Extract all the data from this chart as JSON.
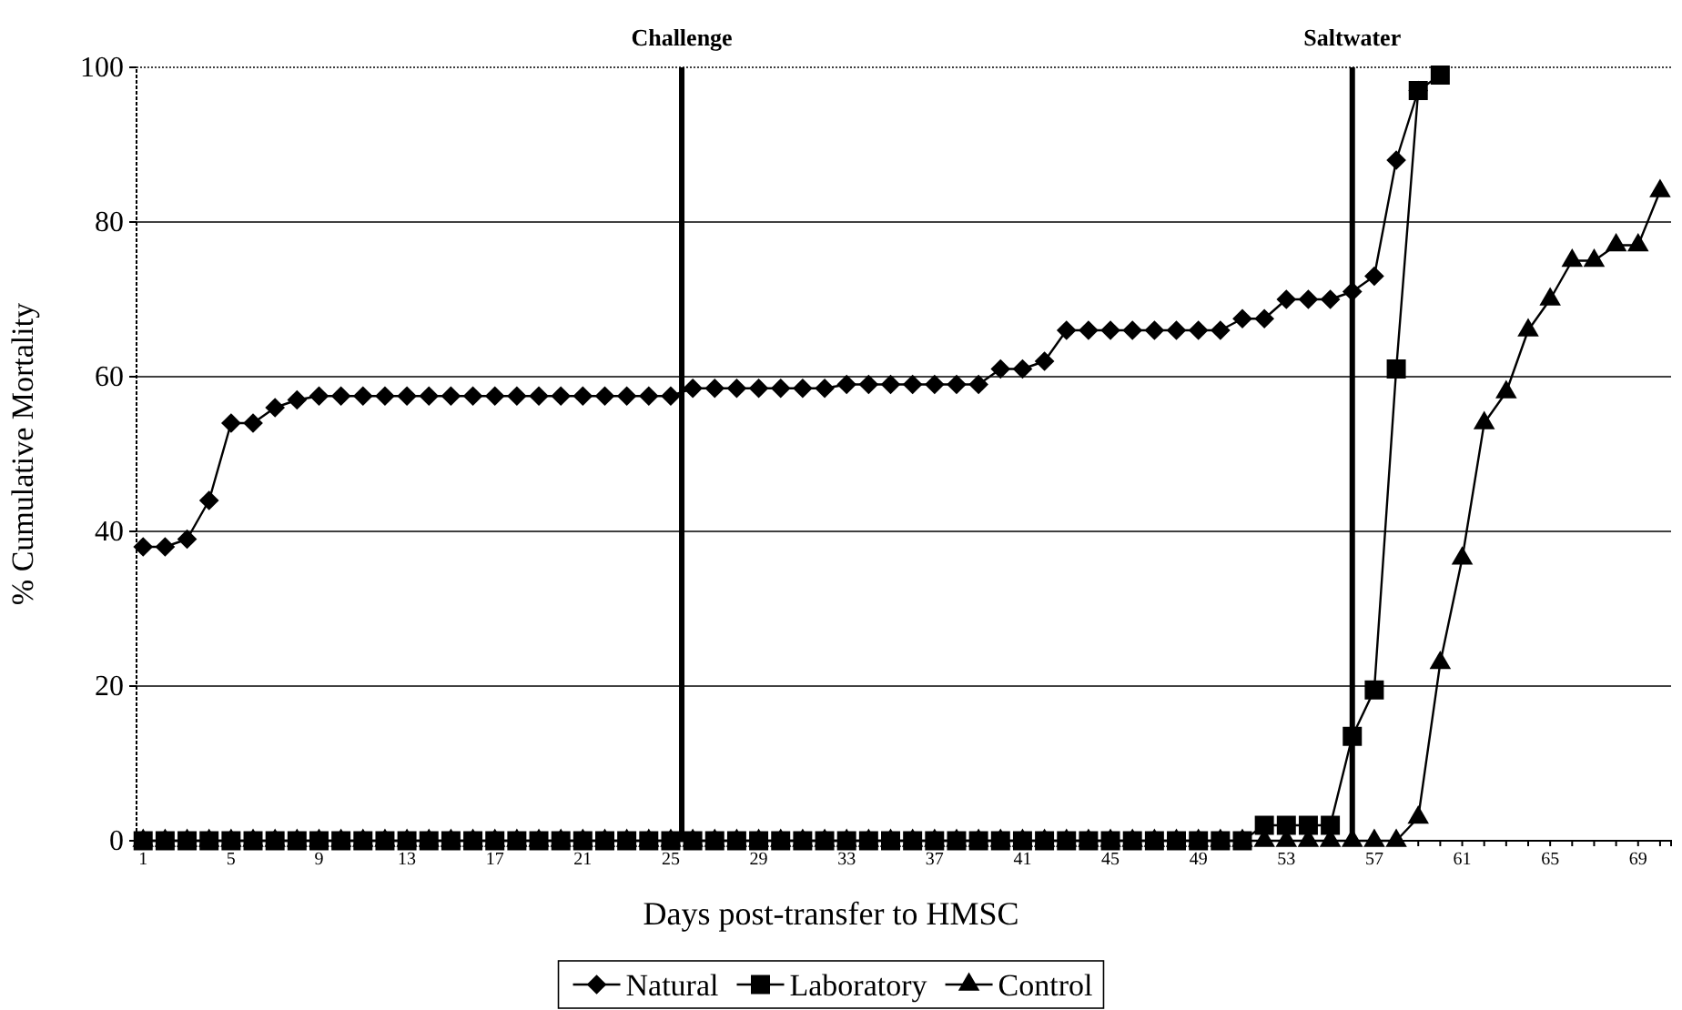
{
  "chart_data": {
    "type": "line",
    "xlabel": "Days post-transfer to HMSC",
    "ylabel": "% Cumulative Mortality",
    "x": [
      1,
      2,
      3,
      4,
      5,
      6,
      7,
      8,
      9,
      10,
      11,
      12,
      13,
      14,
      15,
      16,
      17,
      18,
      19,
      20,
      21,
      22,
      23,
      24,
      25,
      26,
      27,
      28,
      29,
      30,
      31,
      32,
      33,
      34,
      35,
      36,
      37,
      38,
      39,
      40,
      41,
      42,
      43,
      44,
      45,
      46,
      47,
      48,
      49,
      50,
      51,
      52,
      53,
      54,
      55,
      56,
      57,
      58,
      59,
      60,
      61,
      62,
      63,
      64,
      65,
      66,
      67,
      68,
      69,
      70
    ],
    "xlim": [
      0.7,
      70.5
    ],
    "xticks": [
      1,
      {
        "value": 2,
        "label": null
      },
      {
        "value": 3,
        "label": null
      },
      {
        "value": 4,
        "label": null
      },
      5,
      {
        "value": 6,
        "label": null
      },
      {
        "value": 7,
        "label": null
      },
      {
        "value": 8,
        "label": null
      },
      9,
      {
        "value": 10,
        "label": null
      },
      {
        "value": 11,
        "label": null
      },
      {
        "value": 12,
        "label": null
      },
      13,
      {
        "value": 14,
        "label": null
      },
      {
        "value": 15,
        "label": null
      },
      {
        "value": 16,
        "label": null
      },
      17,
      {
        "value": 18,
        "label": null
      },
      {
        "value": 19,
        "label": null
      },
      {
        "value": 20,
        "label": null
      },
      21,
      {
        "value": 22,
        "label": null
      },
      {
        "value": 23,
        "label": null
      },
      {
        "value": 24,
        "label": null
      },
      25,
      {
        "value": 26,
        "label": null
      },
      {
        "value": 27,
        "label": null
      },
      {
        "value": 28,
        "label": null
      },
      29,
      {
        "value": 30,
        "label": null
      },
      {
        "value": 31,
        "label": null
      },
      {
        "value": 32,
        "label": null
      },
      33,
      {
        "value": 34,
        "label": null
      },
      {
        "value": 35,
        "label": null
      },
      {
        "value": 36,
        "label": null
      },
      37,
      {
        "value": 38,
        "label": null
      },
      {
        "value": 39,
        "label": null
      },
      {
        "value": 40,
        "label": null
      },
      41,
      {
        "value": 42,
        "label": null
      },
      {
        "value": 43,
        "label": null
      },
      {
        "value": 44,
        "label": null
      },
      45,
      {
        "value": 46,
        "label": null
      },
      {
        "value": 47,
        "label": null
      },
      {
        "value": 48,
        "label": null
      },
      49,
      {
        "value": 50,
        "label": null
      },
      {
        "value": 51,
        "label": null
      },
      {
        "value": 52,
        "label": null
      },
      53,
      {
        "value": 54,
        "label": null
      },
      {
        "value": 55,
        "label": null
      },
      {
        "value": 56,
        "label": null
      },
      57,
      {
        "value": 58,
        "label": null
      },
      {
        "value": 59,
        "label": null
      },
      {
        "value": 60,
        "label": null
      },
      61,
      {
        "value": 62,
        "label": null
      },
      {
        "value": 63,
        "label": null
      },
      {
        "value": 64,
        "label": null
      },
      65,
      {
        "value": 66,
        "label": null
      },
      {
        "value": 67,
        "label": null
      },
      {
        "value": 68,
        "label": null
      },
      69,
      {
        "value": 70,
        "label": null
      }
    ],
    "ylim": [
      0,
      100
    ],
    "yticks": [
      0,
      20,
      40,
      60,
      80,
      100
    ],
    "grid": "y",
    "legend": "bottom",
    "series": [
      {
        "name": "Natural",
        "color": "#000000",
        "marker": "diamond",
        "values": [
          38,
          38,
          39,
          44,
          54,
          54,
          56,
          57,
          57.5,
          57.5,
          57.5,
          57.5,
          57.5,
          57.5,
          57.5,
          57.5,
          57.5,
          57.5,
          57.5,
          57.5,
          57.5,
          57.5,
          57.5,
          57.5,
          57.5,
          58.5,
          58.5,
          58.5,
          58.5,
          58.5,
          58.5,
          58.5,
          59,
          59,
          59,
          59,
          59,
          59,
          59,
          61,
          61,
          62,
          66,
          66,
          66,
          66,
          66,
          66,
          66,
          66,
          67.5,
          67.5,
          70,
          70,
          70,
          71,
          73,
          88,
          97,
          null,
          null,
          null,
          null,
          null,
          null,
          null,
          null,
          null,
          null,
          null
        ]
      },
      {
        "name": "Laboratory",
        "color": "#000000",
        "marker": "square",
        "values": [
          0,
          0,
          0,
          0,
          0,
          0,
          0,
          0,
          0,
          0,
          0,
          0,
          0,
          0,
          0,
          0,
          0,
          0,
          0,
          0,
          0,
          0,
          0,
          0,
          0,
          0,
          0,
          0,
          0,
          0,
          0,
          0,
          0,
          0,
          0,
          0,
          0,
          0,
          0,
          0,
          0,
          0,
          0,
          0,
          0,
          0,
          0,
          0,
          0,
          0,
          0,
          2,
          2,
          2,
          2,
          13.5,
          19.5,
          61,
          97,
          99,
          null,
          null,
          null,
          null,
          null,
          null,
          null,
          null,
          null,
          null
        ]
      },
      {
        "name": "Control",
        "color": "#000000",
        "marker": "triangle",
        "values": [
          0,
          0,
          0,
          0,
          0,
          0,
          0,
          0,
          0,
          0,
          0,
          0,
          0,
          0,
          0,
          0,
          0,
          0,
          0,
          0,
          0,
          0,
          0,
          0,
          0,
          0,
          0,
          0,
          0,
          0,
          0,
          0,
          0,
          0,
          0,
          0,
          0,
          0,
          0,
          0,
          0,
          0,
          0,
          0,
          0,
          0,
          0,
          0,
          0,
          0,
          0,
          0,
          0,
          0,
          0,
          0,
          0,
          0,
          3,
          23,
          36.5,
          54,
          58,
          66,
          70,
          75,
          75,
          77,
          77,
          84
        ]
      }
    ],
    "ref_lines": [
      {
        "axis": "x",
        "value": 25.5,
        "label": "Challenge",
        "color": "#000000"
      },
      {
        "axis": "x",
        "value": 56,
        "label": "Saltwater",
        "color": "#000000"
      }
    ]
  }
}
